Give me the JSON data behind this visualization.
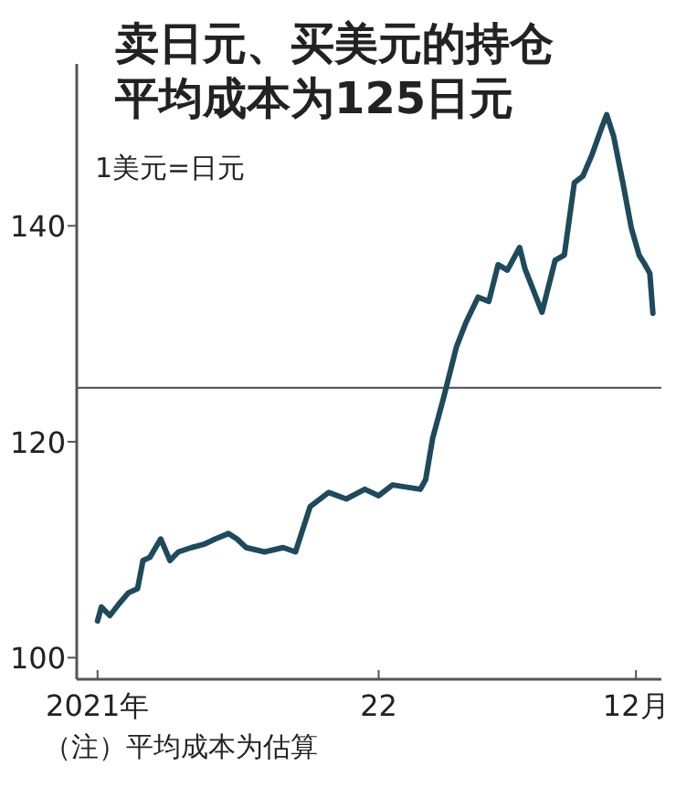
{
  "chart_data": {
    "type": "line",
    "title": "卖日元、买美元的持仓平均成本为125日元",
    "ylabel": "1美元=日元",
    "annotations": [
      "（注）平均成本为估算"
    ],
    "xlim": [
      "2020-12-05",
      "2023-01-03"
    ],
    "ylim": [
      98,
      155
    ],
    "xticks": [
      {
        "value": "2021-01-01",
        "label": "2021年"
      },
      {
        "value": "2022-01-01",
        "label": "22"
      },
      {
        "value": "2022-12-01",
        "label": "12月"
      }
    ],
    "yticks": [
      100,
      120,
      140
    ],
    "grid": false,
    "ref_lines": [
      {
        "axis": "y",
        "value": 125,
        "label": null,
        "color": "#4a4a4a"
      }
    ],
    "series": [
      {
        "color": "#1e4a5c",
        "x": [
          "2021-01-01",
          "2021-01-06",
          "2021-01-17",
          "2021-01-29",
          "2021-02-10",
          "2021-02-22",
          "2021-03-01",
          "2021-03-10",
          "2021-03-24",
          "2021-04-05",
          "2021-04-16",
          "2021-05-03",
          "2021-05-19",
          "2021-06-03",
          "2021-06-20",
          "2021-07-01",
          "2021-07-13",
          "2021-08-06",
          "2021-08-30",
          "2021-09-15",
          "2021-10-04",
          "2021-10-28",
          "2021-11-20",
          "2021-12-14",
          "2022-01-01",
          "2022-01-19",
          "2022-02-24",
          "2022-03-03",
          "2022-03-12",
          "2022-03-26",
          "2022-04-12",
          "2022-04-24",
          "2022-05-10",
          "2022-05-24",
          "2022-06-05",
          "2022-06-17",
          "2022-07-03",
          "2022-07-10",
          "2022-08-01",
          "2022-08-18",
          "2022-08-30",
          "2022-09-12",
          "2022-09-23",
          "2022-10-05",
          "2022-10-17",
          "2022-10-24",
          "2022-11-02",
          "2022-11-14",
          "2022-11-25",
          "2022-12-05",
          "2022-12-12",
          "2022-12-19",
          "2022-12-23"
        ],
        "values": [
          103.4,
          104.7,
          103.9,
          105,
          106,
          106.4,
          109,
          109.3,
          111,
          109,
          109.8,
          110.2,
          110.5,
          111,
          111.5,
          111,
          110.2,
          109.8,
          110.2,
          109.8,
          114,
          115.3,
          114.7,
          115.6,
          115,
          116,
          115.6,
          116.5,
          120.3,
          124,
          128.8,
          131,
          133.4,
          133,
          136.4,
          135.9,
          138,
          136,
          132,
          136.8,
          137.3,
          144,
          144.6,
          146.6,
          149,
          150.3,
          148.3,
          144,
          139.8,
          137.3,
          136.5,
          135.6,
          131.9
        ]
      }
    ]
  }
}
